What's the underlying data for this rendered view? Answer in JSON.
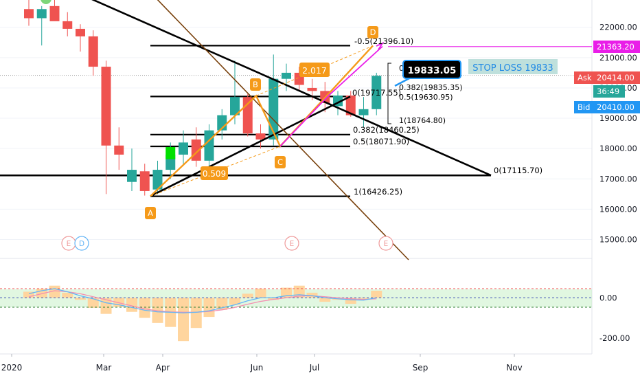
{
  "chart_data": {
    "type": "candlestick",
    "y_axis": {
      "price_ticks": [
        "22000.00",
        "21000.00",
        "20000.00",
        "19000.00",
        "18000.00",
        "17000.00",
        "16000.00",
        "15000.00"
      ],
      "oscillator_ticks": [
        "0.00",
        "-200.00"
      ],
      "price_range": [
        14400,
        22900
      ],
      "oscillator_range": [
        -245,
        175
      ]
    },
    "x_axis": {
      "tick_labels": [
        "2020",
        "Mar",
        "Apr",
        "Jun",
        "Jul",
        "Sep",
        "Nov"
      ]
    },
    "price_tags": {
      "target": "21363.20",
      "ask_label": "Ask",
      "ask_value": "20414.00",
      "countdown": "36:49",
      "bid_label": "Bid",
      "bid_value": "20410.00",
      "target_color": "#e91ee8",
      "ask_color": "#ef5350",
      "countdown_color": "#26a69a",
      "bid_color": "#2196f3"
    },
    "callouts": {
      "last_price": "19833.05",
      "stop_loss": "STOP LOSS 19833"
    },
    "pattern_points": {
      "A": "A",
      "B": "B",
      "C": "C",
      "D": "D"
    },
    "ratios": {
      "ab_ratio": "0.509",
      "bc_ratio": "2.017"
    },
    "fib_labels": {
      "d_ext": "-0.5(21396.10)",
      "cd_zero": "0",
      "cd_0382": "0.382(19835.35)",
      "cd_0": "0(19717.55)",
      "cd_05": "0.5(19630.95)",
      "cd_1": "1(18764.80)",
      "ac_0382": "0.382(18460.25)",
      "ac_05": "0.5(18071.90)",
      "ac_0": "0(17115.70)",
      "ac_1": "1(16426.25)"
    },
    "event_markers": [
      "E",
      "D",
      "E",
      "E"
    ],
    "candles": [
      {
        "o": 22600,
        "h": 22900,
        "l": 22050,
        "c": 22300
      },
      {
        "o": 22300,
        "h": 22700,
        "l": 21400,
        "c": 22600
      },
      {
        "o": 22700,
        "h": 22950,
        "l": 22250,
        "c": 22200
      },
      {
        "o": 22200,
        "h": 22500,
        "l": 21700,
        "c": 21950
      },
      {
        "o": 21950,
        "h": 22100,
        "l": 21200,
        "c": 21700
      },
      {
        "o": 21700,
        "h": 21900,
        "l": 20400,
        "c": 20700
      },
      {
        "o": 20700,
        "h": 20900,
        "l": 16500,
        "c": 18100
      },
      {
        "o": 18100,
        "h": 18700,
        "l": 17300,
        "c": 17800
      },
      {
        "o": 16900,
        "h": 18000,
        "l": 16600,
        "c": 17300
      },
      {
        "o": 17250,
        "h": 17500,
        "l": 16450,
        "c": 16600
      },
      {
        "o": 16650,
        "h": 17600,
        "l": 16500,
        "c": 17300
      },
      {
        "o": 17300,
        "h": 18200,
        "l": 17000,
        "c": 17800
      },
      {
        "o": 17800,
        "h": 18600,
        "l": 17500,
        "c": 18200
      },
      {
        "o": 18300,
        "h": 18700,
        "l": 17400,
        "c": 17600
      },
      {
        "o": 17600,
        "h": 18800,
        "l": 17300,
        "c": 18600
      },
      {
        "o": 18600,
        "h": 19300,
        "l": 18300,
        "c": 19100
      },
      {
        "o": 19100,
        "h": 20900,
        "l": 18800,
        "c": 19700
      },
      {
        "o": 19700,
        "h": 19800,
        "l": 18400,
        "c": 18500
      },
      {
        "o": 18500,
        "h": 18800,
        "l": 18000,
        "c": 18300
      },
      {
        "o": 18300,
        "h": 21100,
        "l": 18100,
        "c": 20300
      },
      {
        "o": 20300,
        "h": 20800,
        "l": 19900,
        "c": 20500
      },
      {
        "o": 20500,
        "h": 20700,
        "l": 19900,
        "c": 20100
      },
      {
        "o": 20000,
        "h": 20300,
        "l": 19600,
        "c": 19900
      },
      {
        "o": 19900,
        "h": 20200,
        "l": 19200,
        "c": 19500
      },
      {
        "o": 19400,
        "h": 19900,
        "l": 19100,
        "c": 19750
      },
      {
        "o": 19750,
        "h": 19900,
        "l": 19050,
        "c": 19100
      },
      {
        "o": 19100,
        "h": 19700,
        "l": 18700,
        "c": 19300
      },
      {
        "o": 19300,
        "h": 20500,
        "l": 19100,
        "c": 20400
      }
    ],
    "oscillator": [
      {
        "v": 30,
        "fast": 20,
        "slow": 5
      },
      {
        "v": 45,
        "fast": 35,
        "slow": 20
      },
      {
        "v": 60,
        "fast": 45,
        "slow": 35
      },
      {
        "v": 25,
        "fast": 30,
        "slow": 30
      },
      {
        "v": -10,
        "fast": 10,
        "slow": 20
      },
      {
        "v": -50,
        "fast": -5,
        "slow": 5
      },
      {
        "v": -80,
        "fast": -25,
        "slow": -10
      },
      {
        "v": -45,
        "fast": -35,
        "slow": -25
      },
      {
        "v": -70,
        "fast": -48,
        "slow": -40
      },
      {
        "v": -100,
        "fast": -62,
        "slow": -55
      },
      {
        "v": -125,
        "fast": -70,
        "slow": -65
      },
      {
        "v": -145,
        "fast": -72,
        "slow": -70
      },
      {
        "v": -215,
        "fast": -75,
        "slow": -72
      },
      {
        "v": -150,
        "fast": -72,
        "slow": -72
      },
      {
        "v": -95,
        "fast": -65,
        "slow": -68
      },
      {
        "v": -60,
        "fast": -50,
        "slow": -60
      },
      {
        "v": -35,
        "fast": -35,
        "slow": -48
      },
      {
        "v": 20,
        "fast": -15,
        "slow": -32
      },
      {
        "v": 45,
        "fast": 0,
        "slow": -18
      },
      {
        "v": -10,
        "fast": 0,
        "slow": -8
      },
      {
        "v": 50,
        "fast": 10,
        "slow": 0
      },
      {
        "v": 60,
        "fast": 15,
        "slow": 8
      },
      {
        "v": 25,
        "fast": 10,
        "slow": 10
      },
      {
        "v": -20,
        "fast": 0,
        "slow": 5
      },
      {
        "v": -10,
        "fast": -5,
        "slow": 0
      },
      {
        "v": -30,
        "fast": -10,
        "slow": -5
      },
      {
        "v": -5,
        "fast": -12,
        "slow": -8
      },
      {
        "v": 35,
        "fast": 0,
        "slow": -5
      }
    ],
    "colors": {
      "up": "#26a69a",
      "down": "#ef5350",
      "trendline": "#000000",
      "pattern": "#f59a19",
      "pink": "#e91ee8",
      "brown": "#8a4b0f",
      "histogram": "#ffd59e",
      "ob": "#ef5350",
      "os": "#2e7d32",
      "mid": "#3f51b5"
    }
  }
}
